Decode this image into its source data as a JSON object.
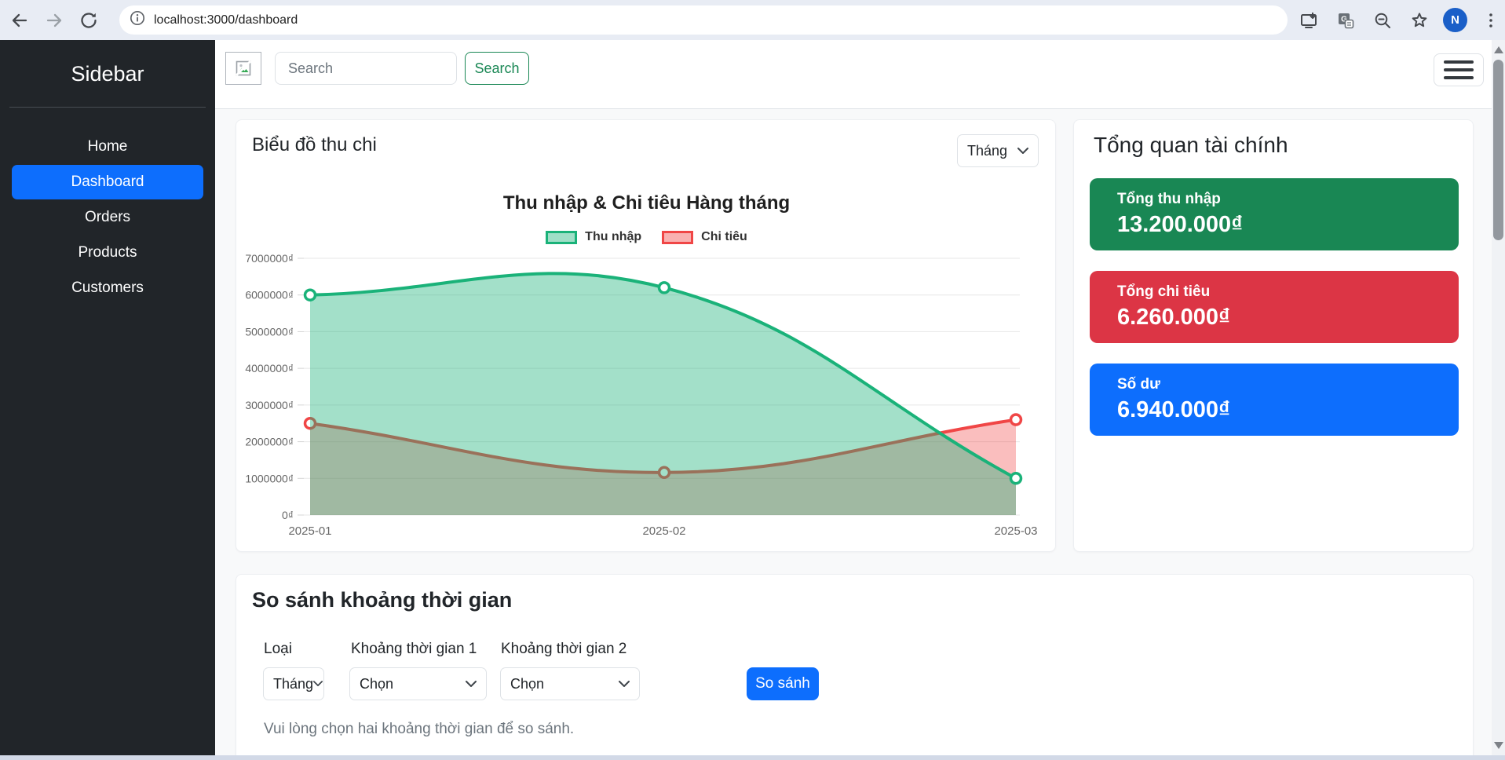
{
  "browser": {
    "url": "localhost:3000/dashboard",
    "avatar_letter": "N",
    "icons": [
      "back-arrow",
      "forward-arrow",
      "reload",
      "site-info",
      "install-app",
      "translate",
      "zoom-out",
      "bookmark-star",
      "profile-avatar",
      "menu-dots"
    ]
  },
  "sidebar": {
    "title": "Sidebar",
    "items": [
      {
        "label": "Home",
        "active": false
      },
      {
        "label": "Dashboard",
        "active": true
      },
      {
        "label": "Orders",
        "active": false
      },
      {
        "label": "Products",
        "active": false
      },
      {
        "label": "Customers",
        "active": false
      }
    ]
  },
  "topbar": {
    "broken_image_icon": "broken-image",
    "search_placeholder": "Search",
    "search_button": "Search",
    "menu_icon": "hamburger-menu"
  },
  "chart_card": {
    "title": "Biểu đồ thu chi",
    "period_select": "Tháng"
  },
  "chart_data": {
    "type": "area",
    "title": "Thu nhập & Chi tiêu Hàng tháng",
    "categories": [
      "2025-01",
      "2025-02",
      "2025-03"
    ],
    "series": [
      {
        "name": "Thu nhập",
        "values": [
          6000000,
          6200000,
          1000000
        ],
        "color": "#1ab279",
        "fill_opacity": 0.4
      },
      {
        "name": "Chi tiêu",
        "values": [
          2500000,
          1160000,
          2600000
        ],
        "color": "#f04646",
        "fill_opacity": 0.35
      }
    ],
    "ylim": [
      0,
      7000000
    ],
    "y_ticks": [
      {
        "value": 0,
        "label": "0₫"
      },
      {
        "value": 1000000,
        "label": "1000000₫"
      },
      {
        "value": 2000000,
        "label": "2000000₫"
      },
      {
        "value": 3000000,
        "label": "3000000₫"
      },
      {
        "value": 4000000,
        "label": "4000000₫"
      },
      {
        "value": 5000000,
        "label": "5000000₫"
      },
      {
        "value": 6000000,
        "label": "6000000₫"
      },
      {
        "value": 7000000,
        "label": "7000000₫"
      }
    ],
    "grid": true,
    "legend_position": "top",
    "line_tension": 0.4
  },
  "summary": {
    "title": "Tổng quan tài chính",
    "cards": [
      {
        "label": "Tổng thu nhập",
        "value": "13.200.000₫",
        "color": "#198754"
      },
      {
        "label": "Tổng chi tiêu",
        "value": "6.260.000₫",
        "color": "#dc3545"
      },
      {
        "label": "Số dư",
        "value": "6.940.000₫",
        "color": "#0d6efd"
      }
    ]
  },
  "compare": {
    "title": "So sánh khoảng thời gian",
    "fields": [
      {
        "label": "Loại",
        "value": "Tháng"
      },
      {
        "label": "Khoảng thời gian 1",
        "value": "Chọn"
      },
      {
        "label": "Khoảng thời gian 2",
        "value": "Chọn"
      }
    ],
    "button": "So sánh",
    "hint": "Vui lòng chọn hai khoảng thời gian để so sánh."
  }
}
